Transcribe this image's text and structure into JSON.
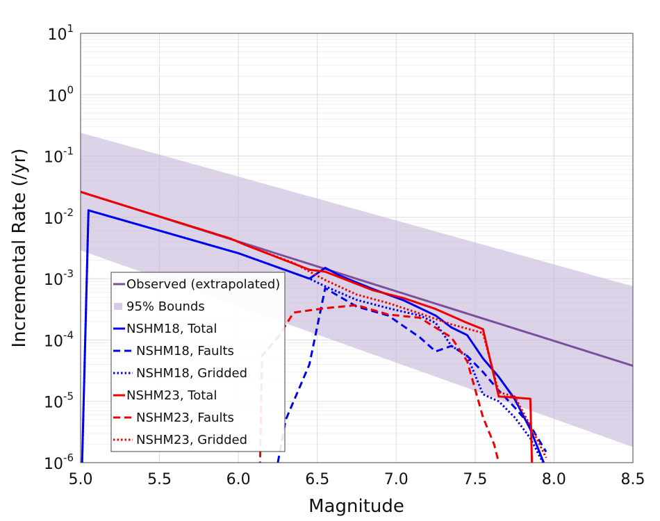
{
  "chart_data": {
    "type": "line",
    "xlabel": "Magnitude",
    "ylabel": "Incremental Rate (/yr)",
    "xlim": [
      5.0,
      8.5
    ],
    "ylim": [
      1e-06,
      10
    ],
    "yscale": "log",
    "grid": true,
    "legend_position": "lower-left",
    "x_ticks": [
      "5.0",
      "5.5",
      "6.0",
      "6.5",
      "7.0",
      "7.5",
      "8.0",
      "8.5"
    ],
    "x_tick_values": [
      5.0,
      5.5,
      6.0,
      6.5,
      7.0,
      7.5,
      8.0,
      8.5
    ],
    "y_ticks": [
      {
        "base": "10",
        "exp": "-6",
        "value": 1e-06
      },
      {
        "base": "10",
        "exp": "-5",
        "value": 1e-05
      },
      {
        "base": "10",
        "exp": "-4",
        "value": 0.0001
      },
      {
        "base": "10",
        "exp": "-3",
        "value": 0.001
      },
      {
        "base": "10",
        "exp": "-2",
        "value": 0.01
      },
      {
        "base": "10",
        "exp": "-1",
        "value": 0.1
      },
      {
        "base": "10",
        "exp": "0",
        "value": 1
      },
      {
        "base": "10",
        "exp": "1",
        "value": 10
      }
    ],
    "bounds": {
      "name": "95% Bounds",
      "color": "#c7b6d9",
      "x": [
        5.0,
        8.5
      ],
      "upper": [
        0.24,
        0.00075
      ],
      "lower": [
        0.0029,
        1.8e-06
      ]
    },
    "series": [
      {
        "name": "Observed (extrapolated)",
        "color": "#7b4f9a",
        "dash": "solid",
        "x": [
          5.0,
          8.5
        ],
        "y": [
          0.026,
          3.8e-05
        ]
      },
      {
        "name": "NSHM18, Total",
        "color": "#0000ee",
        "dash": "solid",
        "x": [
          5.0,
          5.05,
          6.0,
          6.45,
          6.55,
          6.65,
          6.85,
          7.05,
          7.25,
          7.35,
          7.45,
          7.55,
          7.65,
          7.75,
          7.85,
          7.95
        ],
        "y": [
          1e-07,
          0.013,
          0.0026,
          0.001,
          0.0015,
          0.0011,
          0.00068,
          0.00044,
          0.00025,
          0.00016,
          0.00012,
          5e-05,
          2.5e-05,
          1.1e-05,
          3.5e-06,
          8e-07
        ]
      },
      {
        "name": "NSHM18, Faults",
        "color": "#0000ee",
        "dash": "dash",
        "x": [
          6.25,
          6.3,
          6.45,
          6.55,
          6.75,
          6.95,
          7.15,
          7.25,
          7.35,
          7.45,
          7.55,
          7.65,
          7.75,
          7.85,
          7.95
        ],
        "y": [
          1e-06,
          5e-06,
          4e-05,
          0.0007,
          0.00035,
          0.00025,
          0.00011,
          6.5e-05,
          8e-05,
          5.5e-05,
          3e-05,
          1.5e-05,
          8e-06,
          4e-06,
          1.5e-06
        ]
      },
      {
        "name": "NSHM18, Gridded",
        "color": "#0000ee",
        "dash": "dot",
        "x": [
          5.0,
          5.05,
          6.0,
          6.45,
          6.55,
          6.75,
          6.95,
          7.15,
          7.25,
          7.35,
          7.45,
          7.55,
          7.65,
          7.75,
          7.85,
          7.95
        ],
        "y": [
          1e-07,
          0.013,
          0.0026,
          0.001,
          0.00075,
          0.00045,
          0.00033,
          0.00025,
          0.00019,
          8e-05,
          5.5e-05,
          1.3e-05,
          1e-05,
          5.5e-06,
          2.5e-06,
          8e-07
        ]
      },
      {
        "name": "NSHM23, Total",
        "color": "#ee0000",
        "dash": "solid",
        "x": [
          5.0,
          5.95,
          6.05,
          6.45,
          6.55,
          6.85,
          7.05,
          7.25,
          7.45,
          7.55,
          7.65,
          7.75,
          7.85,
          7.87
        ],
        "y": [
          0.026,
          0.0045,
          0.0035,
          0.0014,
          0.0013,
          0.00065,
          0.00048,
          0.00032,
          0.00019,
          0.00015,
          1.2e-05,
          1.15e-05,
          1.1e-05,
          1e-07
        ]
      },
      {
        "name": "NSHM23, Faults",
        "color": "#ee0000",
        "dash": "dash",
        "x": [
          6.13,
          6.15,
          6.25,
          6.35,
          6.55,
          6.75,
          6.95,
          7.15,
          7.35,
          7.45,
          7.55,
          7.62,
          7.65,
          7.67
        ],
        "y": [
          1e-07,
          5.5e-05,
          0.00011,
          0.00028,
          0.00033,
          0.00037,
          0.00026,
          0.00023,
          0.00011,
          4.5e-05,
          5.5e-06,
          2e-06,
          1e-06,
          1e-07
        ]
      },
      {
        "name": "NSHM23, Gridded",
        "color": "#ee0000",
        "dash": "dot",
        "x": [
          5.0,
          5.95,
          6.05,
          6.35,
          6.55,
          6.75,
          6.95,
          7.15,
          7.35,
          7.55,
          7.65,
          7.75,
          7.85,
          7.95
        ],
        "y": [
          0.026,
          0.0045,
          0.0035,
          0.0018,
          0.00095,
          0.00055,
          0.0004,
          0.00027,
          0.00018,
          0.00013,
          1.4e-05,
          1.2e-05,
          4e-06,
          1.2e-06
        ]
      }
    ],
    "legend": [
      {
        "label": "Observed (extrapolated)",
        "color": "#7b4f9a",
        "kind": "line",
        "dash": "solid"
      },
      {
        "label": "95% Bounds",
        "color": "#c7b6d9",
        "kind": "patch",
        "dash": "solid"
      },
      {
        "label": "NSHM18, Total",
        "color": "#0000ee",
        "kind": "line",
        "dash": "solid"
      },
      {
        "label": "NSHM18, Faults",
        "color": "#0000ee",
        "kind": "line",
        "dash": "dash"
      },
      {
        "label": "NSHM18, Gridded",
        "color": "#0000ee",
        "kind": "line",
        "dash": "dot"
      },
      {
        "label": "NSHM23, Total",
        "color": "#ee0000",
        "kind": "line",
        "dash": "solid"
      },
      {
        "label": "NSHM23, Faults",
        "color": "#ee0000",
        "kind": "line",
        "dash": "dash"
      },
      {
        "label": "NSHM23, Gridded",
        "color": "#ee0000",
        "kind": "line",
        "dash": "dot"
      }
    ]
  }
}
